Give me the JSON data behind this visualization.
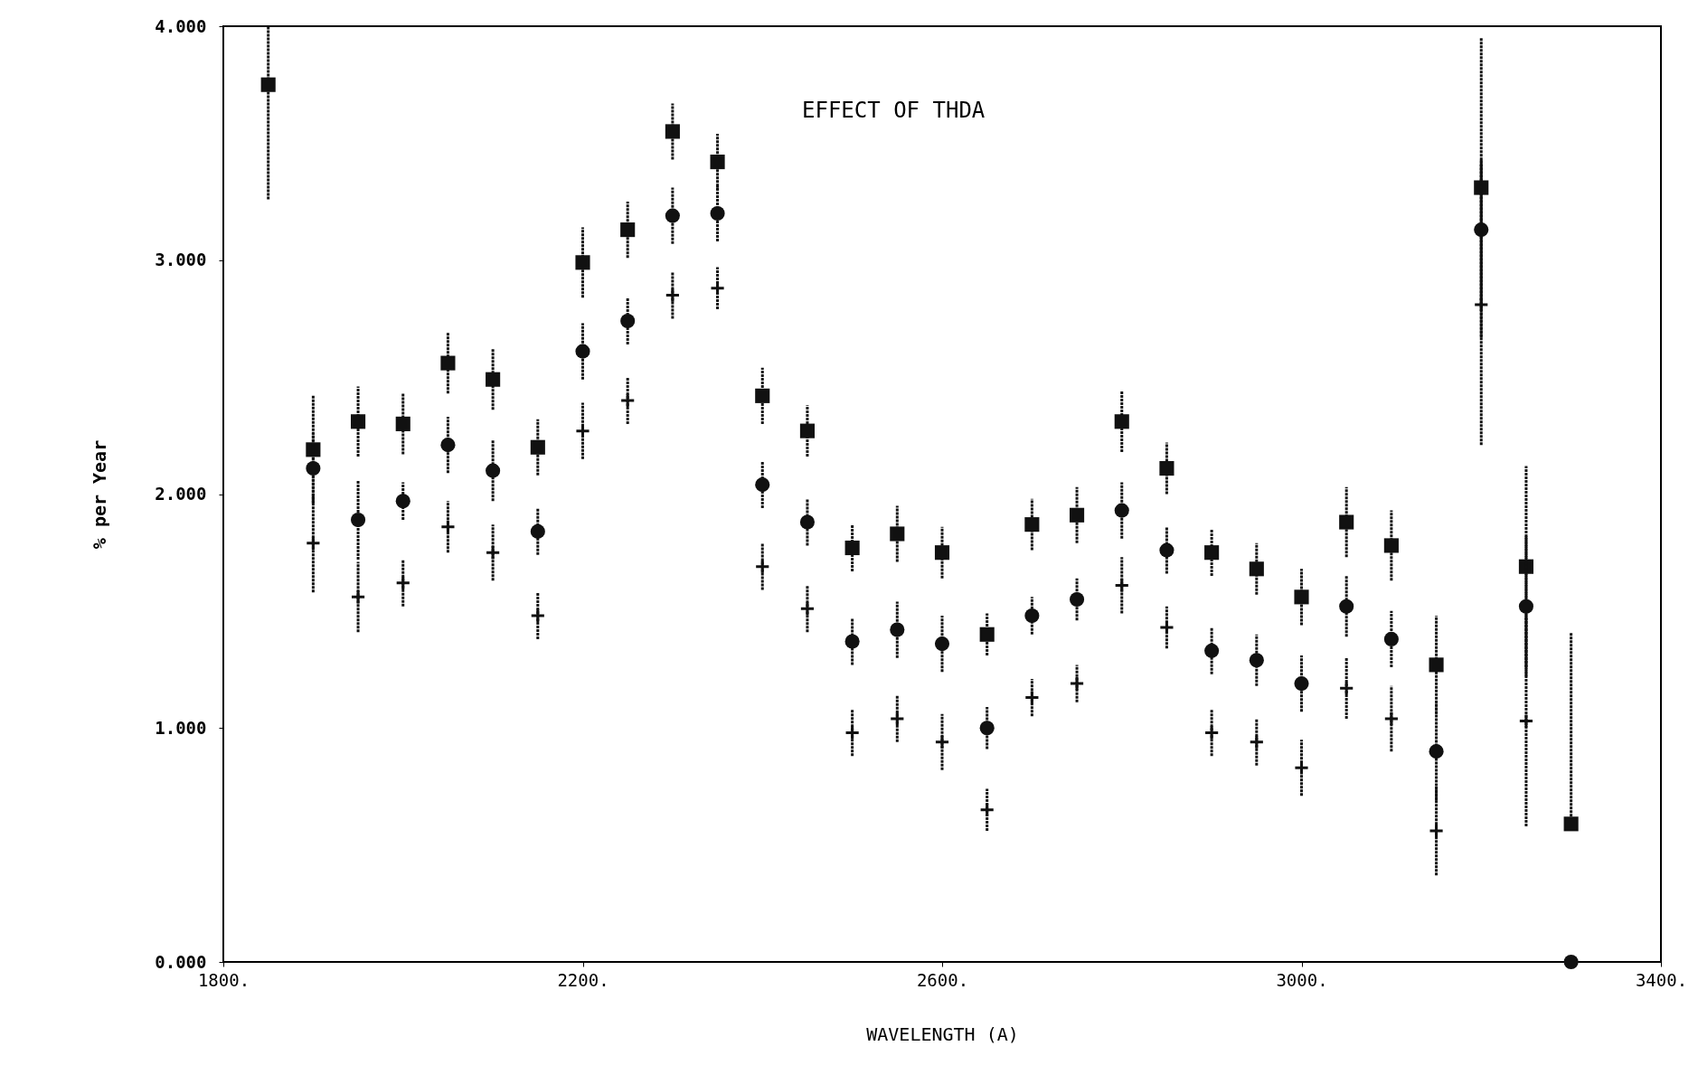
{
  "chart_data": {
    "type": "scatter",
    "annotations": [
      "EFFECT OF THDA"
    ],
    "xlabel": "WAVELENGTH (A)",
    "ylabel": "% per Year",
    "x": [
      1850,
      1900,
      1950,
      2000,
      2050,
      2100,
      2150,
      2200,
      2250,
      2300,
      2350,
      2400,
      2450,
      2500,
      2550,
      2600,
      2650,
      2700,
      2750,
      2800,
      2850,
      2900,
      2950,
      3000,
      3050,
      3100,
      3150,
      3200,
      3250,
      3300
    ],
    "series": [
      {
        "color": "#111111",
        "marker": "square",
        "values": [
          3.75,
          2.19,
          2.31,
          2.3,
          2.56,
          2.49,
          2.2,
          2.99,
          3.13,
          3.55,
          3.42,
          2.42,
          2.27,
          1.77,
          1.83,
          1.75,
          1.4,
          1.87,
          1.91,
          2.31,
          2.11,
          1.75,
          1.68,
          1.56,
          1.88,
          1.78,
          1.27,
          3.31,
          1.69,
          0.59
        ],
        "errors": [
          [
            3.26,
            4.0
          ],
          0.23,
          0.15,
          0.13,
          0.13,
          0.13,
          0.12,
          0.15,
          0.12,
          0.12,
          0.12,
          0.12,
          0.11,
          0.1,
          0.12,
          0.11,
          0.09,
          0.11,
          0.12,
          0.13,
          0.11,
          0.1,
          0.11,
          0.12,
          0.15,
          0.15,
          0.21,
          0.64,
          0.43,
          [
            0.59,
            1.41
          ]
        ]
      },
      {
        "color": "#111111",
        "marker": "circle",
        "values": [
          null,
          2.11,
          1.89,
          1.97,
          2.21,
          2.1,
          1.84,
          2.61,
          2.74,
          3.19,
          3.2,
          2.04,
          1.88,
          1.37,
          1.42,
          1.36,
          1.0,
          1.48,
          1.55,
          1.93,
          1.76,
          1.33,
          1.29,
          1.19,
          1.52,
          1.38,
          0.9,
          3.13,
          1.52,
          0.0
        ],
        "errors": [
          null,
          0.15,
          0.17,
          0.08,
          0.12,
          0.13,
          0.1,
          0.12,
          0.1,
          0.12,
          0.12,
          0.1,
          0.1,
          0.1,
          0.12,
          0.12,
          0.09,
          0.08,
          0.09,
          0.12,
          0.1,
          0.1,
          0.11,
          0.12,
          0.13,
          0.12,
          0.21,
          0.3,
          0.3,
          null
        ]
      },
      {
        "color": "#111111",
        "marker": "cross",
        "values": [
          null,
          1.79,
          1.56,
          1.62,
          1.86,
          1.75,
          1.48,
          2.27,
          2.4,
          2.85,
          2.88,
          1.69,
          1.51,
          0.98,
          1.04,
          0.94,
          0.65,
          1.13,
          1.19,
          1.61,
          1.43,
          0.98,
          0.94,
          0.83,
          1.17,
          1.04,
          0.56,
          2.81,
          1.03,
          null
        ],
        "errors": [
          null,
          0.21,
          0.15,
          0.1,
          0.11,
          0.12,
          0.1,
          0.12,
          0.1,
          0.1,
          0.09,
          0.1,
          0.1,
          0.1,
          0.1,
          0.12,
          0.09,
          0.08,
          0.08,
          0.12,
          0.09,
          0.1,
          0.1,
          0.12,
          0.13,
          0.14,
          0.19,
          0.6,
          0.45,
          null
        ]
      }
    ],
    "xlim": [
      1800,
      3400
    ],
    "xticks": [
      {
        "value": 1800,
        "label": "1800."
      },
      {
        "value": 2200,
        "label": "2200."
      },
      {
        "value": 2600,
        "label": "2600."
      },
      {
        "value": 3000,
        "label": "3000."
      },
      {
        "value": 3400,
        "label": "3400."
      }
    ],
    "ylim": [
      0,
      4
    ],
    "yticks": [
      {
        "value": 0,
        "label": "0.000"
      },
      {
        "value": 1,
        "label": "1.000"
      },
      {
        "value": 2,
        "label": "2.000"
      },
      {
        "value": 3,
        "label": "3.000"
      },
      {
        "value": 4,
        "label": "4.000"
      }
    ],
    "grid": false
  }
}
